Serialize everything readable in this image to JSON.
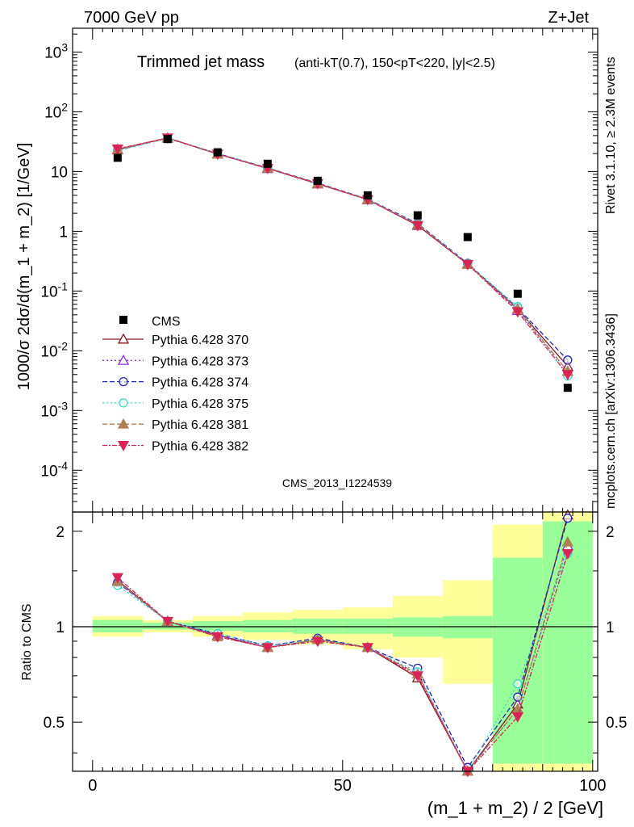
{
  "header": {
    "left": "7000 GeV pp",
    "right": "Z+Jet"
  },
  "side_labels": {
    "rivet": "Rivet 3.1.10, ≥ 2.3M events",
    "mcplots": "mcplots.cern.ch [arXiv:1306.3436]"
  },
  "watermark": "CMS_2013_I1224539",
  "chart_data": [
    {
      "type": "line",
      "panel": "main",
      "title": "Trimmed jet mass",
      "title_suffix": "(anti-kT(0.7), 150<pT<220, |y|<2.5)",
      "xlabel": "(m_1 + m_2) / 2 [GeV]",
      "ylabel": "1000/σ 2dσ/d(m_1 + m_2) [1/GeV]",
      "xlim": [
        -4,
        101
      ],
      "ylim": [
        2e-05,
        2500
      ],
      "yscale": "log",
      "ytick_labels": [
        "10^-4",
        "10^-3",
        "10^-2",
        "10^-1",
        "1",
        "10",
        "10^2",
        "10^3"
      ],
      "legend_position": "middle-left",
      "x": [
        5,
        15,
        25,
        35,
        45,
        55,
        65,
        75,
        85,
        95
      ],
      "reference": {
        "name": "CMS",
        "color": "#000000",
        "values": [
          17,
          35,
          21,
          13.5,
          7.0,
          4.0,
          1.85,
          0.8,
          0.09,
          0.0024
        ]
      },
      "series": [
        {
          "name": "Pythia 6.428 370",
          "color": "#8b1a1a",
          "dash": "",
          "marker": "triangle-open",
          "values": [
            23.5,
            36.5,
            19.8,
            11.3,
            6.2,
            3.4,
            1.25,
            0.28,
            0.05,
            0.0055
          ]
        },
        {
          "name": "Pythia 6.428 373",
          "color": "#8a2be2",
          "dash": "2,3",
          "marker": "triangle-open",
          "values": [
            23.0,
            36.0,
            19.6,
            11.2,
            6.25,
            3.35,
            1.28,
            0.285,
            0.047,
            0.0045
          ]
        },
        {
          "name": "Pythia 6.428 374",
          "color": "#2323cc",
          "dash": "6,3",
          "marker": "circle-open",
          "values": [
            22.8,
            36.2,
            20.0,
            11.5,
            6.4,
            3.45,
            1.35,
            0.29,
            0.052,
            0.007
          ]
        },
        {
          "name": "Pythia 6.428 375",
          "color": "#33ddcc",
          "dash": "2,3",
          "marker": "circle-open",
          "values": [
            22.3,
            36.0,
            19.9,
            11.6,
            6.3,
            3.4,
            1.32,
            0.285,
            0.055,
            0.0038
          ]
        },
        {
          "name": "Pythia 6.428 381",
          "color": "#b08050",
          "dash": "6,3",
          "marker": "triangle-filled",
          "values": [
            23.2,
            36.2,
            19.5,
            11.4,
            6.3,
            3.38,
            1.3,
            0.28,
            0.05,
            0.0045
          ]
        },
        {
          "name": "Pythia 6.428 382",
          "color": "#dd2255",
          "dash": "6,2,2,2",
          "marker": "triangle-down-filled",
          "values": [
            24.0,
            36.5,
            19.6,
            11.3,
            6.3,
            3.4,
            1.25,
            0.28,
            0.045,
            0.004
          ]
        }
      ]
    },
    {
      "type": "line",
      "panel": "ratio",
      "xlabel": "(m_1 + m_2) / 2 [GeV]",
      "ylabel": "Ratio to CMS",
      "xlim": [
        -4,
        101
      ],
      "ylim": [
        0.35,
        2.3
      ],
      "yscale": "log",
      "ytick_labels": [
        "0.5",
        "1",
        "2"
      ],
      "xtick_labels": [
        "0",
        "50",
        "100"
      ],
      "x": [
        5,
        15,
        25,
        35,
        45,
        55,
        65,
        75,
        85,
        95
      ],
      "bands": {
        "edges": [
          0,
          10,
          20,
          30,
          40,
          50,
          60,
          70,
          80,
          90,
          100
        ],
        "stat": [
          [
            0.96,
            1.05
          ],
          [
            0.98,
            1.03
          ],
          [
            0.97,
            1.04
          ],
          [
            0.96,
            1.05
          ],
          [
            0.95,
            1.06
          ],
          [
            0.95,
            1.06
          ],
          [
            0.93,
            1.07
          ],
          [
            0.92,
            1.08
          ],
          [
            0.37,
            1.65
          ],
          [
            0.37,
            2.15
          ]
        ],
        "total": [
          [
            0.93,
            1.08
          ],
          [
            0.96,
            1.05
          ],
          [
            0.93,
            1.08
          ],
          [
            0.91,
            1.11
          ],
          [
            0.88,
            1.13
          ],
          [
            0.85,
            1.15
          ],
          [
            0.8,
            1.25
          ],
          [
            0.66,
            1.4
          ],
          [
            0.35,
            2.1
          ],
          [
            0.35,
            2.3
          ]
        ],
        "stat_color": "#99ff99",
        "total_color": "#ffff99"
      },
      "series": [
        {
          "name": "Pythia 6.428 370",
          "values": [
            1.4,
            1.04,
            0.94,
            0.86,
            0.91,
            0.86,
            0.69,
            0.35,
            0.57,
            2.25
          ]
        },
        {
          "name": "Pythia 6.428 373",
          "values": [
            1.39,
            1.04,
            0.94,
            0.86,
            0.91,
            0.86,
            0.71,
            0.35,
            0.55,
            1.8
          ]
        },
        {
          "name": "Pythia 6.428 374",
          "values": [
            1.38,
            1.04,
            0.95,
            0.87,
            0.92,
            0.86,
            0.74,
            0.36,
            0.6,
            2.2
          ]
        },
        {
          "name": "Pythia 6.428 375",
          "values": [
            1.35,
            1.04,
            0.95,
            0.87,
            0.91,
            0.86,
            0.72,
            0.35,
            0.66,
            1.7
          ]
        },
        {
          "name": "Pythia 6.428 381",
          "values": [
            1.39,
            1.04,
            0.93,
            0.86,
            0.91,
            0.86,
            0.71,
            0.35,
            0.55,
            1.85
          ]
        },
        {
          "name": "Pythia 6.428 382",
          "values": [
            1.43,
            1.04,
            0.93,
            0.86,
            0.9,
            0.86,
            0.7,
            0.35,
            0.52,
            1.7
          ]
        }
      ]
    }
  ]
}
